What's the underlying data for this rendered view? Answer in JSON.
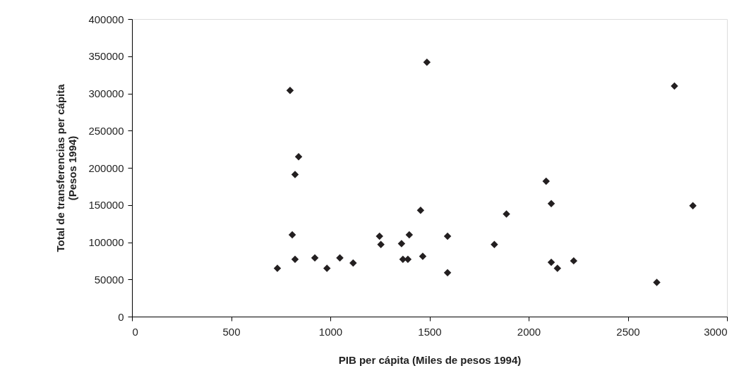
{
  "chart_data": {
    "type": "scatter",
    "xlabel": "PIB per cápita (Miles de pesos 1994)",
    "ylabel": "Total de transferencias per cápita\n(Pesos 1994)",
    "x": [
      733,
      797,
      808,
      822,
      822,
      840,
      922,
      983,
      1048,
      1115,
      1248,
      1255,
      1359,
      1366,
      1391,
      1398,
      1455,
      1466,
      1487,
      1591,
      1591,
      1827,
      1888,
      2088,
      2114,
      2114,
      2145,
      2227,
      2646,
      2735,
      2828
    ],
    "series": [
      {
        "color": "#231f20",
        "values": [
          65000,
          304000,
          110000,
          77000,
          191000,
          215000,
          79000,
          65000,
          79000,
          72000,
          108000,
          97000,
          98000,
          77000,
          77000,
          110000,
          143000,
          81000,
          342000,
          108000,
          59000,
          97000,
          138000,
          182000,
          152000,
          73000,
          65000,
          75000,
          46000,
          310000,
          149000
        ]
      }
    ],
    "xlim": [
      0,
      3000
    ],
    "xticks": [
      0,
      500,
      1000,
      1500,
      2000,
      2500,
      3000
    ],
    "ylim": [
      0,
      400000
    ],
    "yticks": [
      0,
      50000,
      100000,
      150000,
      200000,
      250000,
      300000,
      350000,
      400000
    ],
    "marker": "diamond",
    "grid": false
  }
}
